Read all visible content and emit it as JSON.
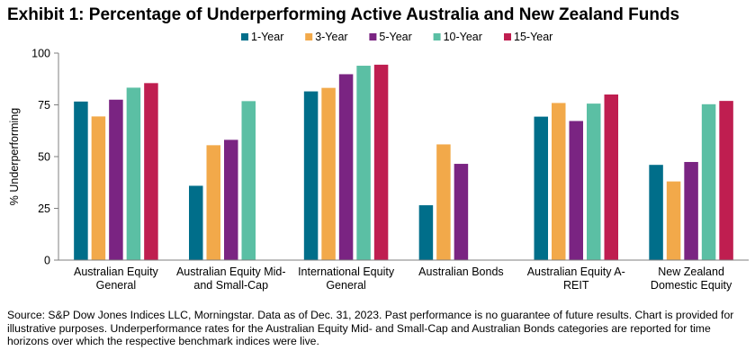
{
  "title": "Exhibit 1: Percentage of Underperforming Active Australia and New Zealand Funds",
  "footer": "Source: S&P Dow Jones Indices LLC, Morningstar.  Data as of Dec. 31, 2023.  Past performance is no guarantee of future results.  Chart is provided for illustrative purposes.  Underperformance rates for the Australian Equity Mid- and Small-Cap and Australian Bonds categories are reported for time horizons over which the respective benchmark indices were live.",
  "chart_data": {
    "type": "bar",
    "ylabel": "% Underperforming",
    "xlabel": "",
    "ylim": [
      0,
      100
    ],
    "yticks": [
      "0",
      "25",
      "50",
      "75",
      "100"
    ],
    "grid": false,
    "legend_position": "top",
    "categories": [
      [
        "Australian Equity",
        "General"
      ],
      [
        "Australian Equity Mid-",
        "and Small-Cap"
      ],
      [
        "International Equity",
        "General"
      ],
      [
        "Australian Bonds"
      ],
      [
        "Australian Equity A-",
        "REIT"
      ],
      [
        "New Zealand",
        "Domestic Equity"
      ]
    ],
    "series": [
      {
        "name": "1-Year",
        "color": "#006E8A",
        "values": [
          76.6,
          35.9,
          81.5,
          26.5,
          69.3,
          46.0
        ]
      },
      {
        "name": "3-Year",
        "color": "#F2A94A",
        "values": [
          69.4,
          55.5,
          83.2,
          55.9,
          75.9,
          38.0
        ]
      },
      {
        "name": "5-Year",
        "color": "#7A2482",
        "values": [
          77.5,
          58.1,
          89.8,
          46.5,
          67.2,
          47.4
        ]
      },
      {
        "name": "10-Year",
        "color": "#5BBFA4",
        "values": [
          83.3,
          76.8,
          93.9,
          null,
          75.6,
          75.3
        ]
      },
      {
        "name": "15-Year",
        "color": "#BF1E50",
        "values": [
          85.5,
          null,
          94.4,
          null,
          80.0,
          76.9
        ]
      }
    ]
  }
}
